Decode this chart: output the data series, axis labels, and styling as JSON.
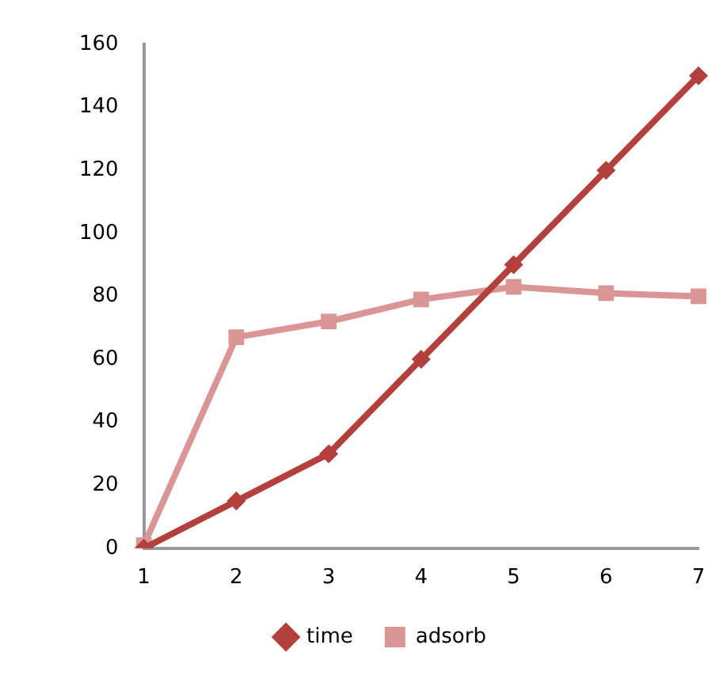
{
  "chart_data": {
    "type": "line",
    "categories": [
      "1",
      "2",
      "3",
      "4",
      "5",
      "6",
      "7"
    ],
    "series": [
      {
        "name": "time",
        "color": "#b3403d",
        "marker": "diamond",
        "values": [
          0,
          15,
          30,
          60,
          90,
          120,
          150
        ]
      },
      {
        "name": "adsorb",
        "color": "#d99694",
        "marker": "square",
        "values": [
          1,
          67,
          72,
          79,
          83,
          81,
          80
        ]
      }
    ],
    "ylim": [
      0,
      160
    ],
    "yticks": [
      0,
      20,
      40,
      60,
      80,
      100,
      120,
      140,
      160
    ],
    "grid": false,
    "legend": "bottom"
  }
}
